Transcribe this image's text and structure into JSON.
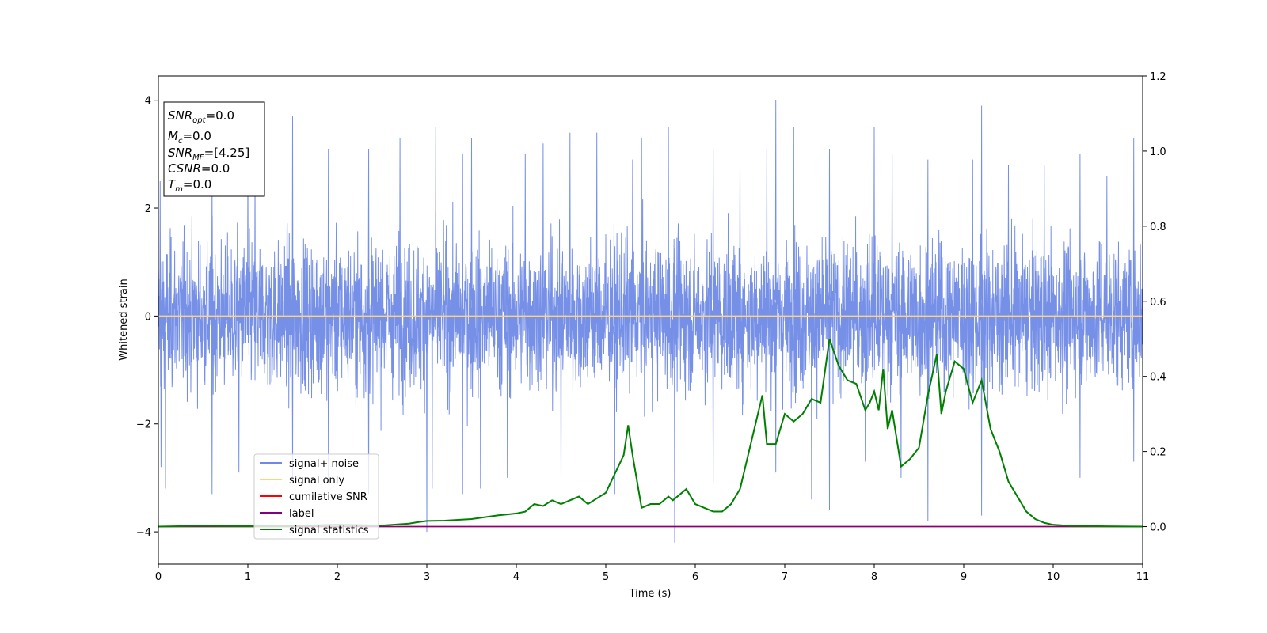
{
  "chart_data": {
    "type": "line",
    "xlabel": "Time (s)",
    "ylabel": "Whitened strain",
    "xlim": [
      0,
      11
    ],
    "ylim": [
      -4.6,
      4.45
    ],
    "y2lim": [
      -0.1,
      1.2
    ],
    "xticks": [
      "0",
      "1",
      "2",
      "3",
      "4",
      "5",
      "6",
      "7",
      "8",
      "9",
      "10",
      "11"
    ],
    "yticks": [
      "-4",
      "-2",
      "0",
      "2",
      "4"
    ],
    "y2ticks": [
      "0.0",
      "0.2",
      "0.4",
      "0.6",
      "0.8",
      "1.0",
      "1.2"
    ],
    "grid": false,
    "legend_position": "lower-left",
    "legend": [
      "signal+ noise",
      "signal only",
      "cumilative SNR",
      "label",
      "signal statistics"
    ],
    "info_box": {
      "snr_opt": "=0.0",
      "mc": "=0.0",
      "snr_mf": "=[4.25]",
      "csnr": "=0.0",
      "tm": "=0.0"
    },
    "series": [
      {
        "name": "signal+ noise",
        "color": "#6f8ae6",
        "axis": "left",
        "kind": "noise",
        "envelope": {
          "typical_top": 2.3,
          "typical_bottom": -2.3,
          "peaks_top": [
            [
              0.02,
              2.5
            ],
            [
              0.6,
              2.7
            ],
            [
              1.0,
              2.9
            ],
            [
              1.08,
              2.6
            ],
            [
              1.5,
              3.7
            ],
            [
              1.9,
              3.1
            ],
            [
              2.35,
              3.1
            ],
            [
              2.7,
              3.3
            ],
            [
              3.1,
              3.5
            ],
            [
              3.4,
              3.0
            ],
            [
              3.5,
              3.3
            ],
            [
              4.1,
              3.0
            ],
            [
              4.3,
              3.2
            ],
            [
              4.6,
              3.4
            ],
            [
              4.9,
              3.4
            ],
            [
              5.3,
              2.9
            ],
            [
              5.4,
              3.3
            ],
            [
              5.7,
              3.5
            ],
            [
              6.2,
              3.1
            ],
            [
              6.5,
              2.8
            ],
            [
              6.8,
              3.1
            ],
            [
              6.9,
              4.0
            ],
            [
              7.1,
              3.5
            ],
            [
              7.5,
              3.1
            ],
            [
              8.0,
              3.5
            ],
            [
              8.2,
              3.0
            ],
            [
              8.6,
              2.9
            ],
            [
              9.1,
              2.9
            ],
            [
              9.2,
              3.9
            ],
            [
              9.5,
              2.8
            ],
            [
              9.9,
              2.8
            ],
            [
              10.3,
              3.0
            ],
            [
              10.6,
              2.6
            ],
            [
              10.9,
              3.3
            ]
          ],
          "peaks_bottom": [
            [
              0.03,
              -2.8
            ],
            [
              0.08,
              -3.2
            ],
            [
              0.6,
              -3.3
            ],
            [
              0.9,
              -2.9
            ],
            [
              1.5,
              -3.0
            ],
            [
              1.9,
              -3.0
            ],
            [
              2.35,
              -3.3
            ],
            [
              3.0,
              -4.0
            ],
            [
              3.06,
              -3.2
            ],
            [
              3.4,
              -3.3
            ],
            [
              3.6,
              -3.2
            ],
            [
              3.9,
              -3.0
            ],
            [
              4.5,
              -3.0
            ],
            [
              5.1,
              -3.3
            ],
            [
              5.77,
              -4.2
            ],
            [
              6.2,
              -3.1
            ],
            [
              6.9,
              -2.9
            ],
            [
              7.3,
              -3.4
            ],
            [
              7.5,
              -3.6
            ],
            [
              7.9,
              -2.7
            ],
            [
              8.3,
              -3.0
            ],
            [
              8.6,
              -3.8
            ],
            [
              9.2,
              -3.7
            ],
            [
              10.3,
              -3.0
            ],
            [
              10.9,
              -2.7
            ]
          ]
        }
      },
      {
        "name": "signal only",
        "color": "#ffd27f",
        "axis": "left",
        "x": [
          0,
          11
        ],
        "values": [
          0,
          0
        ]
      },
      {
        "name": "cumilative SNR",
        "color": "#ff0000",
        "axis": "right",
        "x": [
          0,
          11
        ],
        "values": [
          0,
          0
        ]
      },
      {
        "name": "label",
        "color": "#800080",
        "axis": "right",
        "x": [
          0,
          11
        ],
        "values": [
          0,
          0
        ]
      },
      {
        "name": "signal statistics",
        "color": "#008000",
        "axis": "right",
        "x": [
          0,
          0.4,
          1.0,
          1.5,
          2.0,
          2.5,
          2.8,
          2.9,
          3.0,
          3.2,
          3.5,
          3.8,
          4.0,
          4.1,
          4.2,
          4.3,
          4.4,
          4.5,
          4.6,
          4.7,
          4.8,
          4.9,
          5.0,
          5.1,
          5.2,
          5.25,
          5.3,
          5.4,
          5.5,
          5.6,
          5.7,
          5.75,
          5.8,
          5.9,
          6.0,
          6.1,
          6.2,
          6.3,
          6.4,
          6.5,
          6.6,
          6.7,
          6.75,
          6.8,
          6.9,
          7.0,
          7.1,
          7.2,
          7.3,
          7.4,
          7.5,
          7.6,
          7.7,
          7.8,
          7.9,
          7.95,
          8.0,
          8.05,
          8.1,
          8.15,
          8.2,
          8.3,
          8.4,
          8.5,
          8.6,
          8.7,
          8.75,
          8.8,
          8.9,
          9.0,
          9.1,
          9.2,
          9.3,
          9.4,
          9.5,
          9.6,
          9.7,
          9.8,
          9.9,
          10.0,
          10.2,
          10.5,
          11.0
        ],
        "values": [
          0.0,
          0.002,
          0.001,
          0.002,
          0.005,
          0.003,
          0.008,
          0.012,
          0.015,
          0.016,
          0.02,
          0.03,
          0.035,
          0.04,
          0.06,
          0.055,
          0.07,
          0.06,
          0.07,
          0.08,
          0.06,
          0.075,
          0.09,
          0.14,
          0.19,
          0.27,
          0.19,
          0.05,
          0.06,
          0.06,
          0.08,
          0.07,
          0.08,
          0.1,
          0.06,
          0.05,
          0.04,
          0.04,
          0.06,
          0.1,
          0.2,
          0.3,
          0.35,
          0.22,
          0.22,
          0.3,
          0.28,
          0.3,
          0.34,
          0.33,
          0.5,
          0.43,
          0.39,
          0.38,
          0.31,
          0.33,
          0.36,
          0.31,
          0.42,
          0.26,
          0.31,
          0.16,
          0.18,
          0.21,
          0.35,
          0.46,
          0.3,
          0.36,
          0.44,
          0.42,
          0.33,
          0.39,
          0.26,
          0.2,
          0.12,
          0.08,
          0.04,
          0.02,
          0.01,
          0.005,
          0.002,
          0.001,
          0.0
        ]
      }
    ]
  }
}
